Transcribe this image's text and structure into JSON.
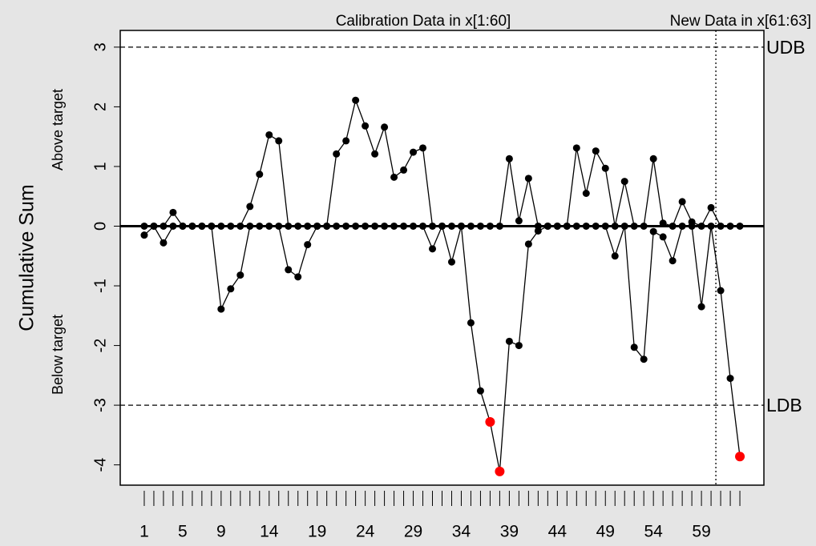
{
  "chart_data": {
    "type": "cusum",
    "y_label": "Cumulative Sum",
    "upper_label": "Above target",
    "lower_label": "Below target",
    "calibration_label": "Calibration Data in x[1:60]",
    "new_data_label": "New Data in x[61:63]",
    "calibration_end": 60,
    "udb": 3,
    "udb_label": "UDB",
    "ldb": -3,
    "ldb_label": "LDB",
    "violation_color": "#ff0000",
    "categories": [
      "1",
      null,
      null,
      null,
      "5",
      null,
      null,
      null,
      "9",
      null,
      null,
      null,
      null,
      "14",
      null,
      null,
      null,
      null,
      "19",
      null,
      null,
      null,
      null,
      "24",
      null,
      null,
      null,
      null,
      "29",
      null,
      null,
      null,
      null,
      "34",
      null,
      null,
      null,
      null,
      "39",
      null,
      null,
      null,
      null,
      "44",
      null,
      null,
      null,
      null,
      "49",
      null,
      null,
      null,
      null,
      "54",
      null,
      null,
      null,
      null,
      "59",
      null,
      null,
      null,
      null
    ],
    "series": [
      {
        "name": "upper",
        "color": "#000000",
        "values": [
          0,
          0,
          0,
          0.23,
          0,
          0,
          0,
          0,
          0,
          0,
          0,
          0.33,
          0.87,
          1.53,
          1.43,
          0,
          0,
          0,
          0,
          0,
          1.21,
          1.43,
          2.11,
          1.68,
          1.21,
          1.66,
          0.82,
          0.94,
          1.24,
          1.31,
          0,
          0,
          0,
          0,
          0,
          0,
          0,
          0,
          1.13,
          0.09,
          0.8,
          0,
          0,
          0,
          0,
          1.31,
          0.55,
          1.26,
          0.97,
          0,
          0.75,
          0,
          0,
          1.13,
          0.05,
          0,
          0.41,
          0.07,
          0,
          0.31,
          0,
          0,
          0
        ]
      },
      {
        "name": "lower",
        "color": "#000000",
        "values": [
          -0.15,
          0,
          -0.28,
          0,
          0,
          0,
          0,
          0,
          -1.39,
          -1.05,
          -0.82,
          0,
          0,
          0,
          0,
          -0.73,
          -0.85,
          -0.31,
          0,
          0,
          0,
          0,
          0,
          0,
          0,
          0,
          0,
          0,
          0,
          0,
          -0.38,
          0,
          -0.6,
          0,
          -1.62,
          -2.76,
          -3.28,
          -4.11,
          -1.93,
          -2.0,
          -0.3,
          -0.08,
          0,
          0,
          0,
          0,
          0,
          0,
          0,
          -0.5,
          0,
          -2.03,
          -2.23,
          -0.09,
          -0.18,
          -0.58,
          0,
          0,
          -1.35,
          0,
          -1.08,
          -2.55,
          -3.86
        ]
      }
    ],
    "xlim": [
      -1.5,
      65.5
    ],
    "ylim": [
      -4.34,
      3.28
    ],
    "yticks": [
      -4,
      -3,
      -2,
      -1,
      0,
      1,
      2,
      3
    ]
  }
}
